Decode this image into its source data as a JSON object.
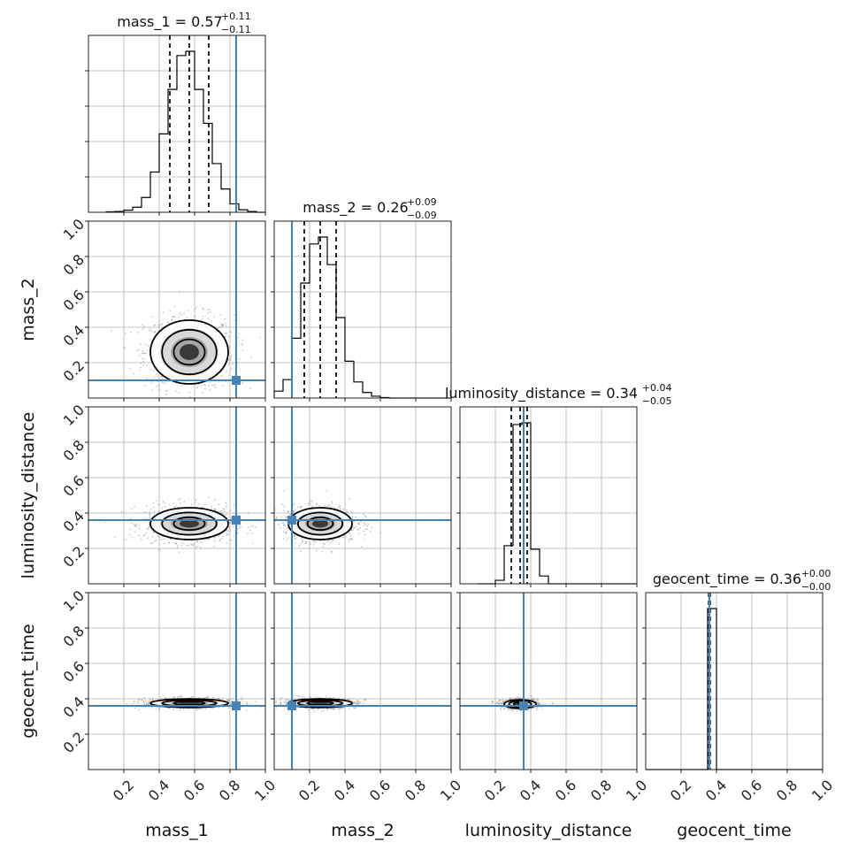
{
  "chart_data": {
    "type": "corner",
    "parameters": [
      "mass_1",
      "mass_2",
      "luminosity_distance",
      "geocent_time"
    ],
    "axis_labels": [
      "mass_1",
      "mass_2",
      "luminosity_distance",
      "geocent_time"
    ],
    "titles": [
      {
        "param": "mass_1",
        "text": "mass_1 = 0.57",
        "plus": "+0.11",
        "minus": "−0.11"
      },
      {
        "param": "mass_2",
        "text": "mass_2 = 0.26",
        "plus": "+0.09",
        "minus": "−0.09"
      },
      {
        "param": "luminosity_distance",
        "text": "luminosity_distance = 0.34",
        "plus": "+0.04",
        "minus": "−0.05"
      },
      {
        "param": "geocent_time",
        "text": "geocent_time = 0.36",
        "plus": "+0.00",
        "minus": "−0.00"
      }
    ],
    "axis_range": [
      0,
      1
    ],
    "tick_values": [
      0.2,
      0.4,
      0.6,
      0.8,
      1.0
    ],
    "tick_labels": [
      "0.2",
      "0.4",
      "0.6",
      "0.8",
      "1.0"
    ],
    "grid": true,
    "truths": {
      "mass_1": 0.835,
      "mass_2": 0.1,
      "luminosity_distance": 0.36,
      "geocent_time": 0.36
    },
    "truth_color": "#4682b4",
    "histograms": [
      {
        "param": "mass_1",
        "bin_width": 0.05,
        "bin_starts": [
          0.1,
          0.15,
          0.2,
          0.25,
          0.3,
          0.35,
          0.4,
          0.45,
          0.5,
          0.55,
          0.6,
          0.65,
          0.7,
          0.75,
          0.8,
          0.85,
          0.9,
          0.95
        ],
        "counts": [
          1,
          2,
          5,
          12,
          35,
          95,
          185,
          290,
          370,
          380,
          290,
          210,
          115,
          55,
          20,
          6,
          2,
          0
        ],
        "quantiles": [
          0.46,
          0.57,
          0.68
        ]
      },
      {
        "param": "mass_2",
        "bin_width": 0.05,
        "bin_starts": [
          0.0,
          0.05,
          0.1,
          0.15,
          0.2,
          0.25,
          0.3,
          0.35,
          0.4,
          0.45,
          0.5,
          0.55,
          0.6,
          0.65,
          0.7,
          0.75,
          0.8,
          0.85,
          0.9,
          0.95
        ],
        "counts": [
          15,
          40,
          130,
          250,
          335,
          350,
          290,
          175,
          80,
          35,
          12,
          4,
          1,
          0,
          0,
          0,
          0,
          0,
          0,
          0
        ],
        "quantiles": [
          0.17,
          0.26,
          0.35
        ]
      },
      {
        "param": "luminosity_distance",
        "bin_width": 0.05,
        "bin_starts": [
          0.1,
          0.15,
          0.2,
          0.25,
          0.3,
          0.35,
          0.4,
          0.45,
          0.5,
          0.55,
          0.6,
          0.65,
          0.7,
          0.75,
          0.8,
          0.85,
          0.9,
          0.95
        ],
        "counts": [
          0,
          0,
          20,
          220,
          920,
          930,
          200,
          45,
          0,
          0,
          0,
          0,
          0,
          0,
          0,
          0,
          0,
          0
        ],
        "quantiles": [
          0.29,
          0.34,
          0.38
        ]
      },
      {
        "param": "geocent_time",
        "bin_width": 0.05,
        "bin_starts": [
          0.0,
          0.05,
          0.1,
          0.15,
          0.2,
          0.25,
          0.3,
          0.35,
          0.4,
          0.45,
          0.5,
          0.55,
          0.6,
          0.65,
          0.7,
          0.75,
          0.8,
          0.85,
          0.9,
          0.95
        ],
        "counts": [
          0,
          0,
          0,
          0,
          0,
          0,
          0,
          1000,
          0,
          0,
          0,
          0,
          0,
          0,
          0,
          0,
          0,
          0,
          0,
          0
        ],
        "quantiles": [
          0.356,
          0.36,
          0.364
        ]
      }
    ],
    "contours_2d": [
      {
        "x": "mass_1",
        "y": "mass_2",
        "center": [
          0.57,
          0.26
        ],
        "sigma": [
          0.11,
          0.09
        ]
      },
      {
        "x": "mass_1",
        "y": "luminosity_distance",
        "center": [
          0.57,
          0.34
        ],
        "sigma": [
          0.11,
          0.045
        ]
      },
      {
        "x": "mass_2",
        "y": "luminosity_distance",
        "center": [
          0.26,
          0.34
        ],
        "sigma": [
          0.09,
          0.045
        ]
      },
      {
        "x": "mass_1",
        "y": "geocent_time",
        "center": [
          0.57,
          0.375
        ],
        "sigma": [
          0.11,
          0.012
        ]
      },
      {
        "x": "mass_2",
        "y": "geocent_time",
        "center": [
          0.26,
          0.375
        ],
        "sigma": [
          0.09,
          0.012
        ]
      },
      {
        "x": "luminosity_distance",
        "y": "geocent_time",
        "center": [
          0.34,
          0.37
        ],
        "sigma": [
          0.045,
          0.012
        ]
      }
    ]
  }
}
